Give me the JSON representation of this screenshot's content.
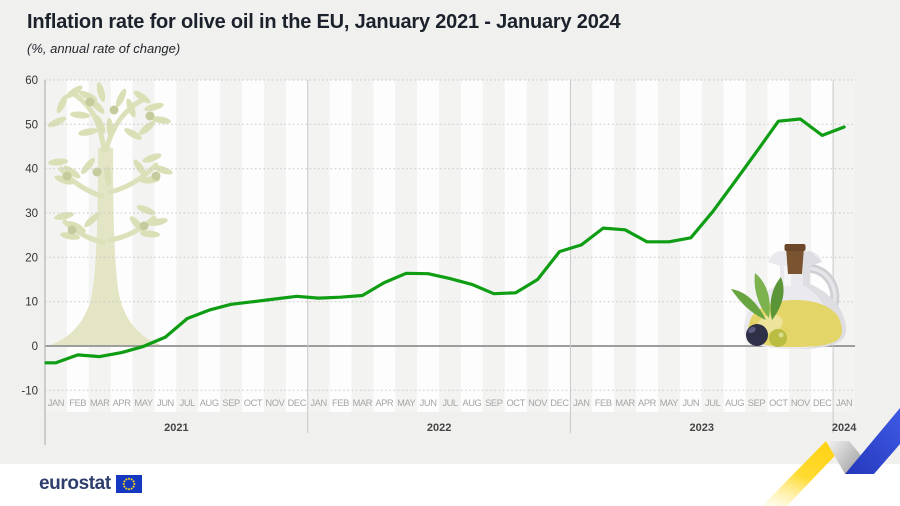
{
  "header": {
    "title": "Inflation rate for olive oil in the EU, January 2021 - January 2024",
    "subtitle": "(%, annual rate of change)"
  },
  "chart_data": {
    "type": "line",
    "title": "Inflation rate for olive oil in the EU, January 2021 - January 2024",
    "ylabel": "(%, annual rate of change)",
    "ylim": [
      -10,
      60
    ],
    "yticks": [
      60,
      50,
      40,
      30,
      20,
      10,
      0,
      -10
    ],
    "grid": "dotted horizontal lines every 10, solid line at 0",
    "legend": "none",
    "months": [
      "JAN",
      "FEB",
      "MAR",
      "APR",
      "MAY",
      "JUN",
      "JUL",
      "AUG",
      "SEP",
      "OCT",
      "NOV",
      "DEC",
      "JAN",
      "FEB",
      "MAR",
      "APR",
      "MAY",
      "JUN",
      "JUL",
      "AUG",
      "SEP",
      "OCT",
      "NOV",
      "DEC",
      "JAN",
      "FEB",
      "MAR",
      "APR",
      "MAY",
      "JUN",
      "JUL",
      "AUG",
      "SEP",
      "OCT",
      "NOV",
      "DEC",
      "JAN"
    ],
    "years": [
      {
        "label": "2021",
        "start": 0,
        "count": 12
      },
      {
        "label": "2022",
        "start": 12,
        "count": 12
      },
      {
        "label": "2023",
        "start": 24,
        "count": 12
      },
      {
        "label": "2024",
        "start": 36,
        "count": 1
      }
    ],
    "series": [
      {
        "name": "Olive oil inflation rate, EU",
        "values": [
          -3.8,
          -2.0,
          -2.4,
          -1.5,
          -0.1,
          2.0,
          6.2,
          8.1,
          9.4,
          10.0,
          10.6,
          11.2,
          10.8,
          11.0,
          11.4,
          14.3,
          16.4,
          16.3,
          15.2,
          13.9,
          11.8,
          12.0,
          15.0,
          21.3,
          22.8,
          26.6,
          26.2,
          23.5,
          23.5,
          24.4,
          30.3,
          37.0,
          43.8,
          50.7,
          51.2,
          47.5,
          49.4
        ]
      }
    ],
    "colors": {
      "line": "#0f9d14",
      "band_shaded": "#f3f3f2",
      "band_light": "#fdfdfd",
      "zero_line": "#9d9d9d",
      "grid": "#c9c9c9",
      "separator": "#c8c8c8",
      "axis": "#b9b9b9",
      "tick_text": "#333333",
      "month_text": "#a5a5a5",
      "year_text": "#454545"
    }
  },
  "footer": {
    "logo_text": "eurostat",
    "logo_color": "#2e3f6e",
    "flag_blue": "#1439c0",
    "flag_star_yellow": "#ffd617"
  },
  "decor": {
    "ribbon_yellow": "#ffd317",
    "ribbon_blue": "#2c43cf",
    "ribbon_gray": "#9f9f9f",
    "tree_foliage": "#dbdfb5",
    "oil_yellow": "#e3d567"
  }
}
